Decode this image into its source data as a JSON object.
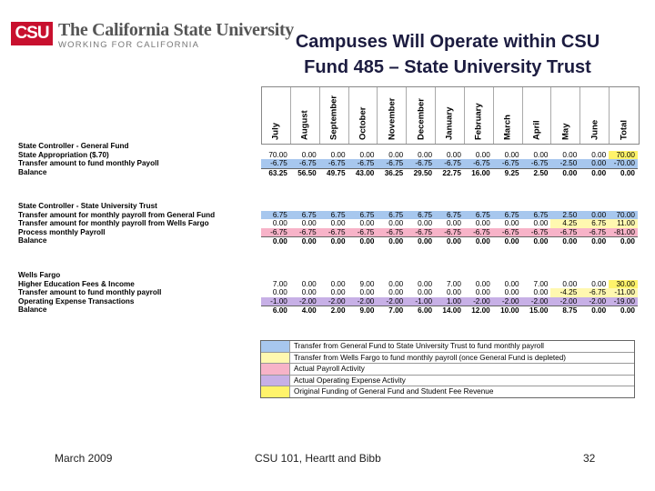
{
  "logo": {
    "box_text": "CSU",
    "name": "The California State University",
    "tagline": "WORKING FOR CALIFORNIA"
  },
  "title": {
    "line1": "Campuses Will Operate within CSU",
    "line2": "Fund 485 – State University Trust"
  },
  "months": [
    "July",
    "August",
    "September",
    "October",
    "November",
    "December",
    "January",
    "February",
    "March",
    "April",
    "May",
    "June",
    "Total"
  ],
  "sections": [
    {
      "header": "State Controller - General Fund",
      "rows": [
        {
          "label": "State Appropriation ($.70)",
          "values": [
            "70.00",
            "0.00",
            "0.00",
            "0.00",
            "0.00",
            "0.00",
            "0.00",
            "0.00",
            "0.00",
            "0.00",
            "0.00",
            "0.00",
            "70.00"
          ],
          "style": "",
          "total_highlight": "yellow"
        },
        {
          "label": "Transfer amount to fund monthly Payoll",
          "values": [
            "-6.75",
            "-6.75",
            "-6.75",
            "-6.75",
            "-6.75",
            "-6.75",
            "-6.75",
            "-6.75",
            "-6.75",
            "-6.75",
            "-2.50",
            "0.00",
            "-70.00"
          ],
          "style": "blue"
        },
        {
          "label": "Balance",
          "values": [
            "63.25",
            "56.50",
            "49.75",
            "43.00",
            "36.25",
            "29.50",
            "22.75",
            "16.00",
            "9.25",
            "2.50",
            "0.00",
            "0.00",
            "0.00"
          ],
          "style": "balance"
        }
      ]
    },
    {
      "header": "State Controller - State University Trust",
      "rows": [
        {
          "label": "Transfer amount for monthly payroll from General Fund",
          "values": [
            "6.75",
            "6.75",
            "6.75",
            "6.75",
            "6.75",
            "6.75",
            "6.75",
            "6.75",
            "6.75",
            "6.75",
            "2.50",
            "0.00",
            "70.00"
          ],
          "style": "blue"
        },
        {
          "label": "Transfer amount for monthly payroll from Wells Fargo",
          "values": [
            "0.00",
            "0.00",
            "0.00",
            "0.00",
            "0.00",
            "0.00",
            "0.00",
            "0.00",
            "0.00",
            "0.00",
            "4.25",
            "6.75",
            "11.00"
          ],
          "style": "",
          "highlight_from": 10
        },
        {
          "label": "Process monthly Payroll",
          "values": [
            "-6.75",
            "-6.75",
            "-6.75",
            "-6.75",
            "-6.75",
            "-6.75",
            "-6.75",
            "-6.75",
            "-6.75",
            "-6.75",
            "-6.75",
            "-6.75",
            "-81.00"
          ],
          "style": "pink"
        },
        {
          "label": "Balance",
          "values": [
            "0.00",
            "0.00",
            "0.00",
            "0.00",
            "0.00",
            "0.00",
            "0.00",
            "0.00",
            "0.00",
            "0.00",
            "0.00",
            "0.00",
            "0.00"
          ],
          "style": "balance"
        }
      ]
    },
    {
      "header": "Wells Fargo",
      "rows": [
        {
          "label": "Higher Education Fees & Income",
          "values": [
            "7.00",
            "0.00",
            "0.00",
            "9.00",
            "0.00",
            "0.00",
            "7.00",
            "0.00",
            "0.00",
            "7.00",
            "0.00",
            "0.00",
            "30.00"
          ],
          "style": "",
          "total_highlight": "yellow"
        },
        {
          "label": "Transfer amount to fund monthly payroll",
          "values": [
            "0.00",
            "0.00",
            "0.00",
            "0.00",
            "0.00",
            "0.00",
            "0.00",
            "0.00",
            "0.00",
            "0.00",
            "-4.25",
            "-6.75",
            "-11.00"
          ],
          "style": "",
          "highlight_from": 10
        },
        {
          "label": "Operating Expense Transactions",
          "values": [
            "-1.00",
            "-2.00",
            "-2.00",
            "-2.00",
            "-2.00",
            "-1.00",
            "1.00",
            "-2.00",
            "-2.00",
            "-2.00",
            "-2.00",
            "-2.00",
            "-19.00"
          ],
          "style": "purple"
        },
        {
          "label": "Balance",
          "values": [
            "6.00",
            "4.00",
            "2.00",
            "9.00",
            "7.00",
            "6.00",
            "14.00",
            "12.00",
            "10.00",
            "15.00",
            "8.75",
            "0.00",
            "0.00"
          ],
          "style": "balance"
        }
      ]
    }
  ],
  "legend": [
    {
      "color": "#a7c7ee",
      "text": "Transfer from General Fund to State University Trust to fund monthly payroll"
    },
    {
      "color": "#fff8b0",
      "text": "Transfer from Wells Fargo to fund monthly payroll (once General Fund is depleted)"
    },
    {
      "color": "#f7b3c8",
      "text": "Actual Payroll Activity"
    },
    {
      "color": "#c7b0e6",
      "text": "Actual Operating Expense Activity"
    },
    {
      "color": "#fff36b",
      "text": "Original Funding of General Fund and Student Fee Revenue"
    }
  ],
  "footer": {
    "date": "March 2009",
    "center": "CSU 101, Heartt and Bibb",
    "page": "32"
  }
}
